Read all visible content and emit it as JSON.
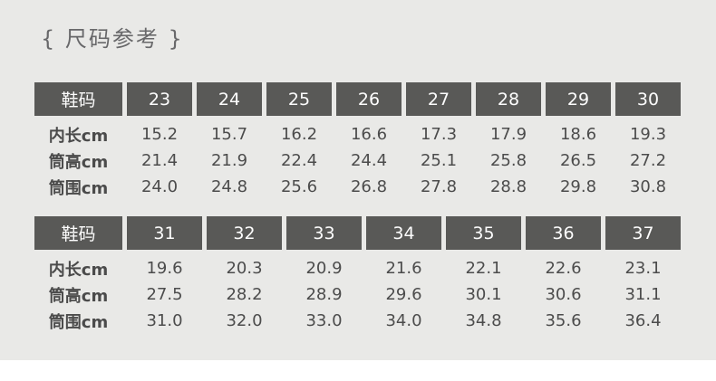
{
  "page": {
    "title": "{ 尺码参考 }",
    "panel_bg_color": "#e9e9e7",
    "header_bg_color": "#595957",
    "header_text_color": "#fdfdfd",
    "body_text_color": "#4c4c4c"
  },
  "tables": [
    {
      "header_label": "鞋码",
      "sizes": [
        "23",
        "24",
        "25",
        "26",
        "27",
        "28",
        "29",
        "30"
      ],
      "rows": [
        {
          "label": "内长cm",
          "values": [
            "15.2",
            "15.7",
            "16.2",
            "16.6",
            "17.3",
            "17.9",
            "18.6",
            "19.3"
          ]
        },
        {
          "label": "筒高cm",
          "values": [
            "21.4",
            "21.9",
            "22.4",
            "24.4",
            "25.1",
            "25.8",
            "26.5",
            "27.2"
          ]
        },
        {
          "label": "筒围cm",
          "values": [
            "24.0",
            "24.8",
            "25.6",
            "26.8",
            "27.8",
            "28.8",
            "29.8",
            "30.8"
          ]
        }
      ]
    },
    {
      "header_label": "鞋码",
      "sizes": [
        "31",
        "32",
        "33",
        "34",
        "35",
        "36",
        "37"
      ],
      "rows": [
        {
          "label": "内长cm",
          "values": [
            "19.6",
            "20.3",
            "20.9",
            "21.6",
            "22.1",
            "22.6",
            "23.1"
          ]
        },
        {
          "label": "筒高cm",
          "values": [
            "27.5",
            "28.2",
            "28.9",
            "29.6",
            "30.1",
            "30.6",
            "31.1"
          ]
        },
        {
          "label": "筒围cm",
          "values": [
            "31.0",
            "32.0",
            "33.0",
            "34.0",
            "34.8",
            "35.6",
            "36.4"
          ]
        }
      ]
    }
  ],
  "chart_data": [
    {
      "type": "table",
      "title": "尺码参考 (sizes 23-30)",
      "categories": [
        23,
        24,
        25,
        26,
        27,
        28,
        29,
        30
      ],
      "series": [
        {
          "name": "内长cm",
          "values": [
            15.2,
            15.7,
            16.2,
            16.6,
            17.3,
            17.9,
            18.6,
            19.3
          ]
        },
        {
          "name": "筒高cm",
          "values": [
            21.4,
            21.9,
            22.4,
            24.4,
            25.1,
            25.8,
            26.5,
            27.2
          ]
        },
        {
          "name": "筒围cm",
          "values": [
            24.0,
            24.8,
            25.6,
            26.8,
            27.8,
            28.8,
            29.8,
            30.8
          ]
        }
      ]
    },
    {
      "type": "table",
      "title": "尺码参考 (sizes 31-37)",
      "categories": [
        31,
        32,
        33,
        34,
        35,
        36,
        37
      ],
      "series": [
        {
          "name": "内长cm",
          "values": [
            19.6,
            20.3,
            20.9,
            21.6,
            22.1,
            22.6,
            23.1
          ]
        },
        {
          "name": "筒高cm",
          "values": [
            27.5,
            28.2,
            28.9,
            29.6,
            30.1,
            30.6,
            31.1
          ]
        },
        {
          "name": "筒围cm",
          "values": [
            31.0,
            32.0,
            33.0,
            34.0,
            34.8,
            35.6,
            36.4
          ]
        }
      ]
    }
  ]
}
